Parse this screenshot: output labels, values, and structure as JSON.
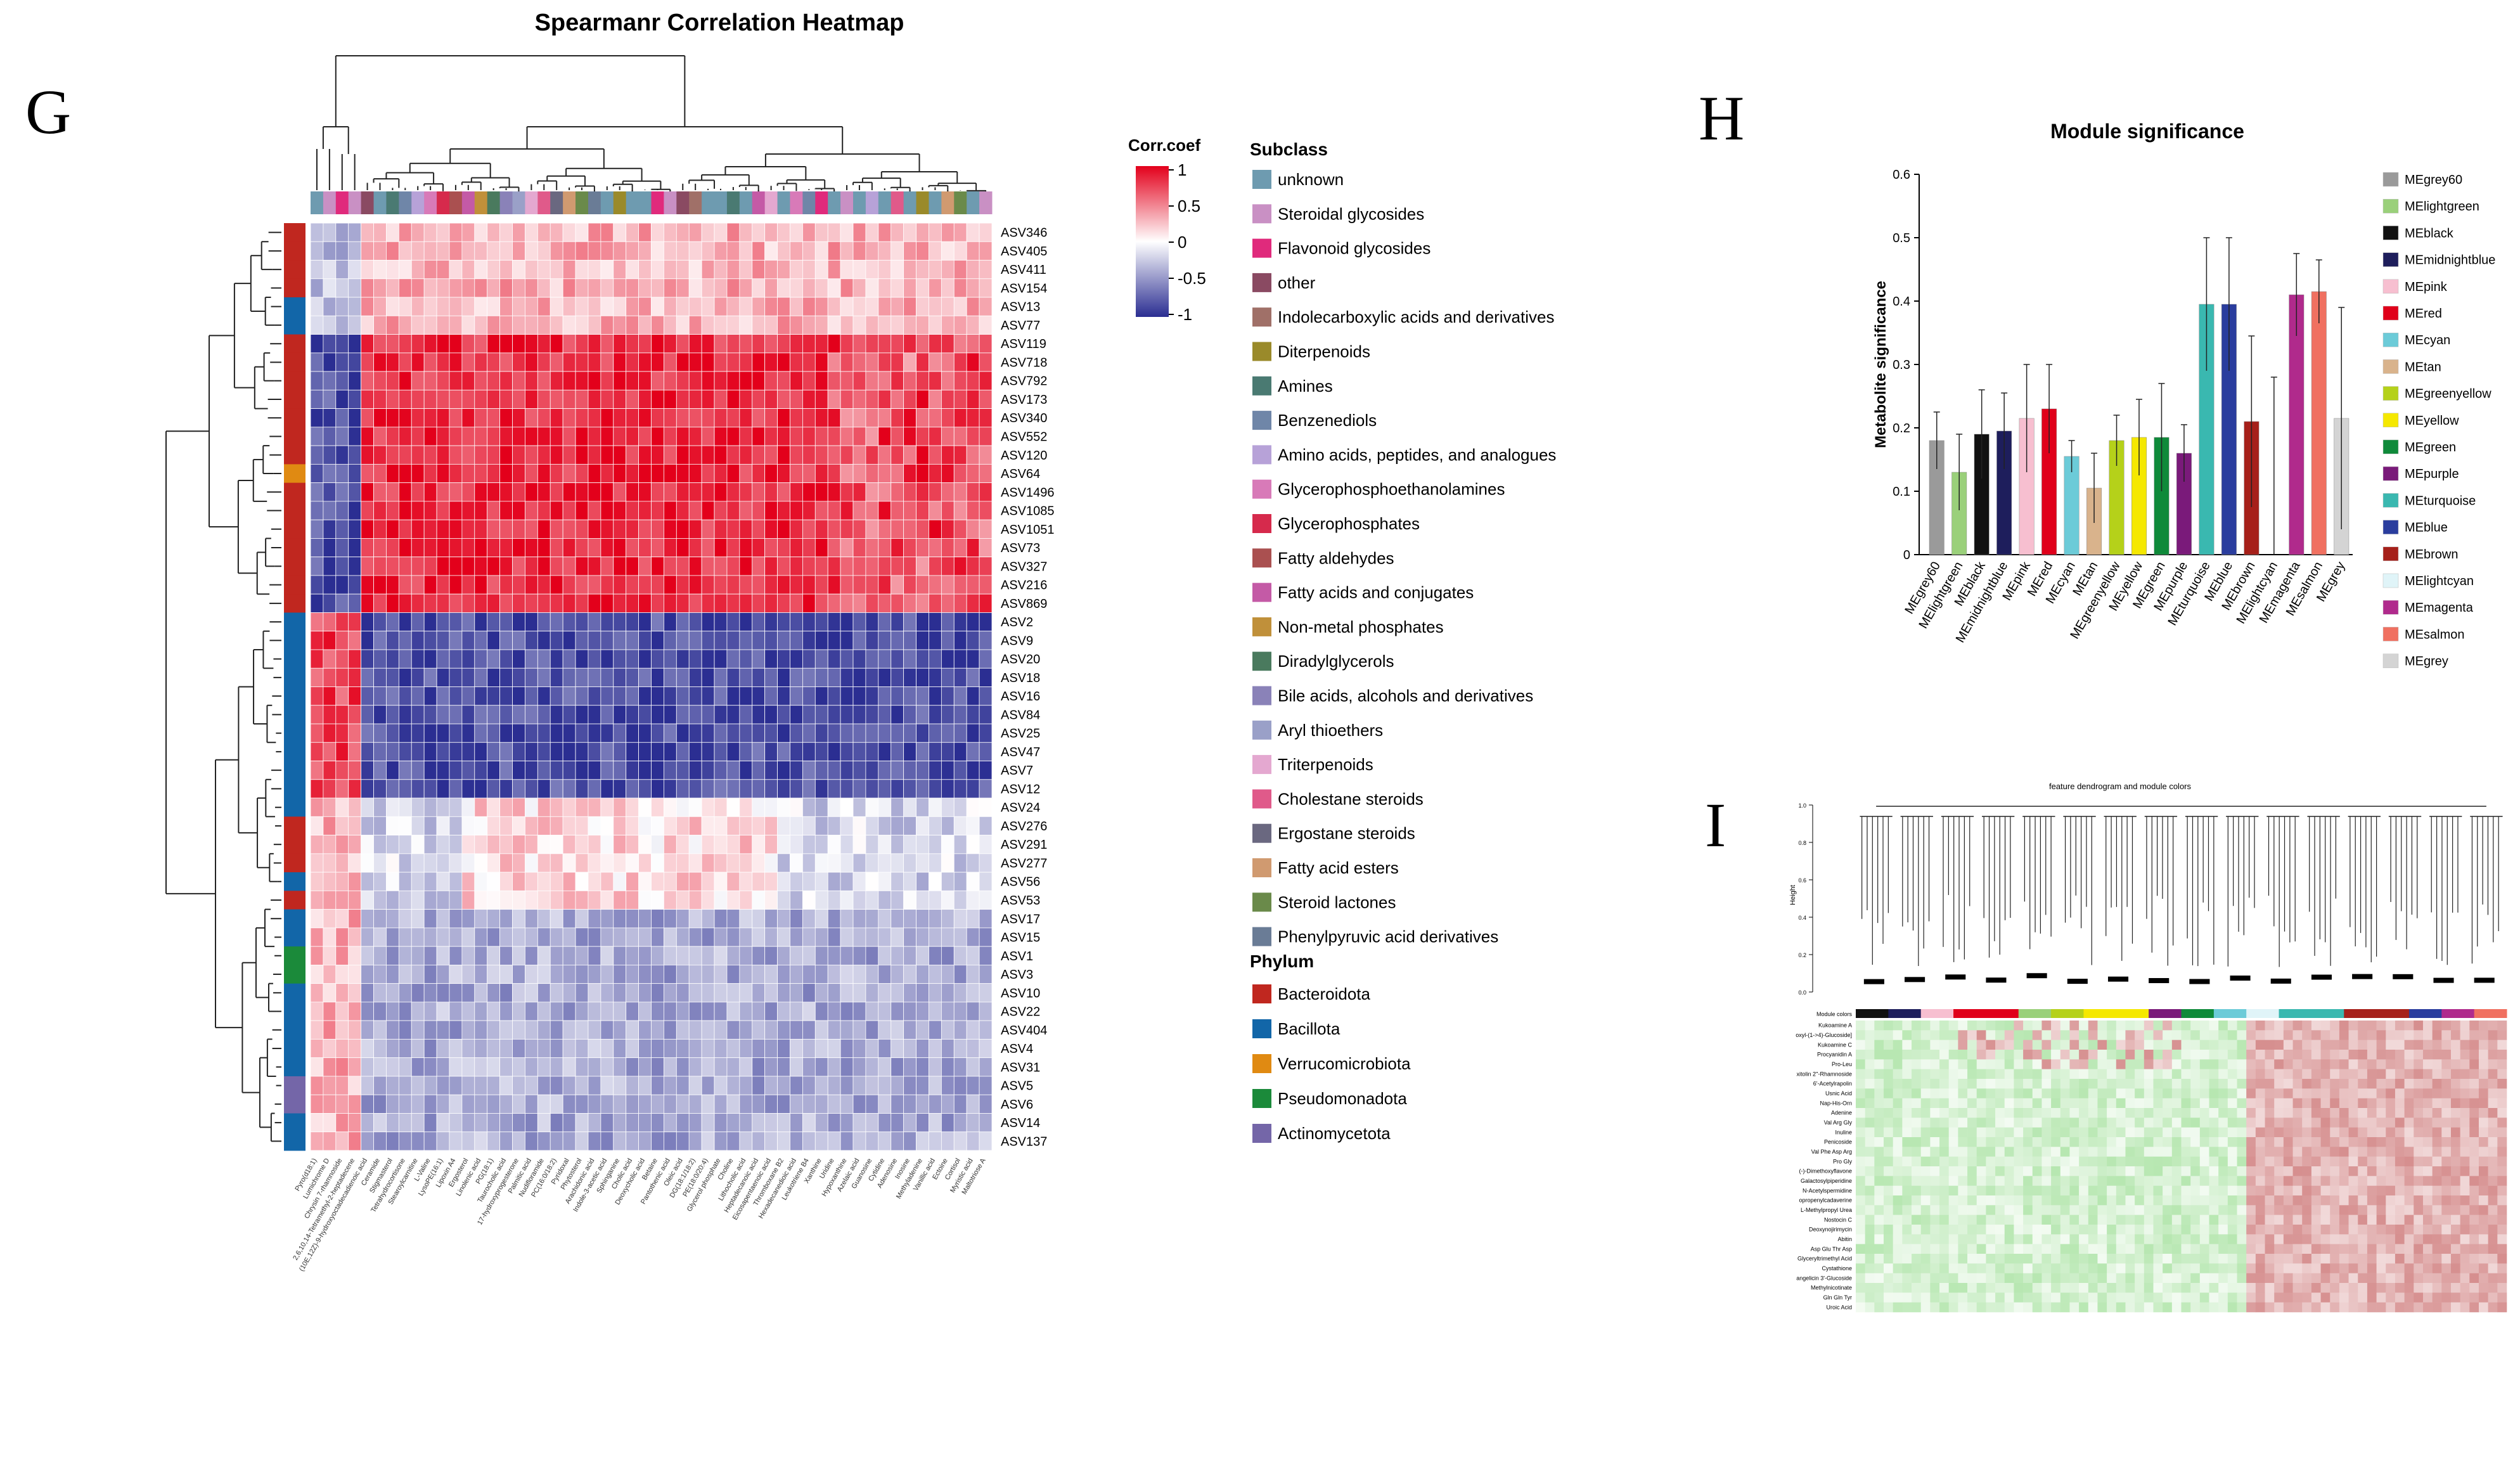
{
  "panel_labels": {
    "g": "G",
    "h": "H",
    "i": "I"
  },
  "heatmap": {
    "title": "Spearmanr Correlation Heatmap",
    "corr_legend": {
      "title": "Corr.coef",
      "ticks": [
        "1",
        "0.5",
        "0",
        "-0.5",
        "-1"
      ]
    },
    "subclass_title": "Subclass",
    "subclasses": [
      {
        "label": "unknown",
        "color": "#6e9bb0"
      },
      {
        "label": "Steroidal glycosides",
        "color": "#c990c4"
      },
      {
        "label": "Flavonoid glycosides",
        "color": "#e02a7c"
      },
      {
        "label": "other",
        "color": "#8a4a62"
      },
      {
        "label": "Indolecarboxylic acids and derivatives",
        "color": "#a07068"
      },
      {
        "label": "Diterpenoids",
        "color": "#9a8a2a"
      },
      {
        "label": "Amines",
        "color": "#4a7a72"
      },
      {
        "label": "Benzenediols",
        "color": "#6f86a8"
      },
      {
        "label": "Amino acids, peptides, and analogues",
        "color": "#b7a2d8"
      },
      {
        "label": "Glycerophosphoethanolamines",
        "color": "#d87ab8"
      },
      {
        "label": "Glycerophosphates",
        "color": "#d62a4c"
      },
      {
        "label": "Fatty aldehydes",
        "color": "#aa5050"
      },
      {
        "label": "Fatty acids and conjugates",
        "color": "#c45aa6"
      },
      {
        "label": "Non-metal phosphates",
        "color": "#c0903a"
      },
      {
        "label": "Diradylglycerols",
        "color": "#4a7a5e"
      },
      {
        "label": "Bile acids, alcohols and derivatives",
        "color": "#8a82b8"
      },
      {
        "label": "Aryl thioethers",
        "color": "#9aa0c8"
      },
      {
        "label": "Triterpenoids",
        "color": "#e4a8d0"
      },
      {
        "label": "Cholestane steroids",
        "color": "#e05a8a"
      },
      {
        "label": "Ergostane steroids",
        "color": "#6a6880"
      },
      {
        "label": "Fatty acid esters",
        "color": "#d09a70"
      },
      {
        "label": "Steroid lactones",
        "color": "#6a8a4a"
      },
      {
        "label": "Phenylpyruvic acid derivatives",
        "color": "#6a7c96"
      }
    ],
    "phylum_title": "Phylum",
    "phyla": [
      {
        "label": "Bacteroidota",
        "color": "#c0271f"
      },
      {
        "label": "Bacillota",
        "color": "#1266a8"
      },
      {
        "label": "Verrucomicrobiota",
        "color": "#e08a12"
      },
      {
        "label": "Pseudomonadota",
        "color": "#1b8a3a"
      },
      {
        "label": "Actinomycetota",
        "color": "#7466a8"
      }
    ],
    "row_labels": [
      "ASV346",
      "ASV405",
      "ASV411",
      "ASV154",
      "ASV13",
      "ASV77",
      "ASV119",
      "ASV718",
      "ASV792",
      "ASV173",
      "ASV340",
      "ASV552",
      "ASV120",
      "ASV64",
      "ASV1496",
      "ASV1085",
      "ASV1051",
      "ASV73",
      "ASV327",
      "ASV216",
      "ASV869",
      "ASV2",
      "ASV9",
      "ASV20",
      "ASV18",
      "ASV16",
      "ASV84",
      "ASV25",
      "ASV47",
      "ASV7",
      "ASV12",
      "ASV24",
      "ASV276",
      "ASV291",
      "ASV277",
      "ASV56",
      "ASV53",
      "ASV17",
      "ASV15",
      "ASV1",
      "ASV3",
      "ASV10",
      "ASV22",
      "ASV404",
      "ASV4",
      "ASV31",
      "ASV5",
      "ASV6",
      "ASV14",
      "ASV137"
    ],
    "row_phylum": [
      "Bacteroidota",
      "Bacteroidota",
      "Bacteroidota",
      "Bacteroidota",
      "Bacillota",
      "Bacillota",
      "Bacteroidota",
      "Bacteroidota",
      "Bacteroidota",
      "Bacteroidota",
      "Bacteroidota",
      "Bacteroidota",
      "Bacteroidota",
      "Verrucomicrobiota",
      "Bacteroidota",
      "Bacteroidota",
      "Bacteroidota",
      "Bacteroidota",
      "Bacteroidota",
      "Bacteroidota",
      "Bacteroidota",
      "Bacillota",
      "Bacillota",
      "Bacillota",
      "Bacillota",
      "Bacillota",
      "Bacillota",
      "Bacillota",
      "Bacillota",
      "Bacillota",
      "Bacillota",
      "Bacillota",
      "Bacteroidota",
      "Bacteroidota",
      "Bacteroidota",
      "Bacillota",
      "Bacteroidota",
      "Bacillota",
      "Bacillota",
      "Pseudomonadota",
      "Pseudomonadota",
      "Bacillota",
      "Bacillota",
      "Bacillota",
      "Bacillota",
      "Bacillota",
      "Actinomycetota",
      "Actinomycetota",
      "Bacillota",
      "Bacillota"
    ],
    "col_labels": [
      "Pyro(d18:1)",
      "Lumichrome D",
      "Chrysin 7-rhamnoside",
      "2,6,10,14-Tetramethyl-2-heptadecene",
      "(10E,12Z)-9-hydroxyoctadecadienoic acid",
      "Ceramide",
      "Stigmasterol",
      "Tetrahydrocortisone",
      "Stearoylcarnitine",
      "L-Valine",
      "LysoPE(16:1)",
      "Lipoxin A4",
      "Ergosterol",
      "Linolenic acid",
      "PG(18:1)",
      "Taurocholic acid",
      "17-hydroxyprogesterone",
      "Palmitic acid",
      "Nudifloramide",
      "PC(16:0/18:2)",
      "Pyridoxal",
      "Phytosterol",
      "Arachidonic acid",
      "Indole-3-acetic acid",
      "Sphinganine",
      "Cholic acid",
      "Deoxycholic acid",
      "Betaine",
      "Pantothenic acid",
      "Oleic acid",
      "DG(18:1/18:2)",
      "PE(18:0/20:4)",
      "Glycerol phosphate",
      "Choline",
      "Lithocholic acid",
      "Heptadecanoic acid",
      "Eicosapentaenoic acid",
      "Thromboxane B2",
      "Hexadecanedioic acid",
      "Leukotriene B4",
      "Xanthine",
      "Uridine",
      "Hypoxanthine",
      "Azelaic acid",
      "Guanosine",
      "Cytidine",
      "Adenosine",
      "Inosine",
      "Methyladenine",
      "Vanillic acid",
      "Ectoine",
      "Cortisol",
      "Myristic acid",
      "Maltotriose A"
    ],
    "col_subclass_colors": [
      "#6e9bb0",
      "#c990c4",
      "#e02a7c",
      "#c990c4",
      "#8a4a62",
      "#6e9bb0",
      "#4a7a72",
      "#6f86a8",
      "#b7a2d8",
      "#d87ab8",
      "#d62a4c",
      "#aa5050",
      "#c45aa6",
      "#c0903a",
      "#4a7a5e",
      "#8a82b8",
      "#9aa0c8",
      "#e4a8d0",
      "#e05a8a",
      "#6a6880",
      "#d09a70",
      "#6a8a4a",
      "#6a7c96",
      "#6e9bb0",
      "#9a8a2a",
      "#6e9bb0",
      "#6e9bb0",
      "#e02a7c",
      "#c990c4",
      "#8a4a62",
      "#a07068",
      "#6e9bb0",
      "#6e9bb0",
      "#4a7a72",
      "#6e9bb0",
      "#c45aa6",
      "#e4a8d0",
      "#6e9bb0",
      "#d87ab8",
      "#6f86a8",
      "#e02a7c",
      "#6e9bb0",
      "#c990c4",
      "#6e9bb0",
      "#b7a2d8",
      "#6e9bb0",
      "#e05a8a",
      "#6e9bb0",
      "#9a8a2a",
      "#6e9bb0",
      "#d09a70",
      "#6a8a4a",
      "#6e9bb0",
      "#c990c4"
    ]
  },
  "chart_data": [
    {
      "type": "heatmap",
      "title": "Spearmanr Correlation Heatmap",
      "legend_title": "Corr.coef",
      "value_range": [
        -1,
        1
      ],
      "row_groups": [
        {
          "rows": "ASV346-ASV77",
          "left_block": -0.3,
          "right_block": 0.3
        },
        {
          "rows": "ASV119-ASV869",
          "left_block": -0.85,
          "right_block": 0.85
        },
        {
          "rows": "ASV2-ASV12",
          "left_block": 0.75,
          "right_block": -0.85
        },
        {
          "rows": "ASV24-ASV53",
          "left_block": 0.3,
          "right_block": 0.15
        },
        {
          "rows": "ASV17-ASV137",
          "left_block": 0.3,
          "right_block": -0.4
        }
      ]
    },
    {
      "type": "bar",
      "title": "Module significance",
      "ylabel": "Metabolite significance",
      "ylim": [
        0,
        0.6
      ],
      "yticks": [
        "0",
        "0.1",
        "0.2",
        "0.3",
        "0.4",
        "0.5",
        "0.6"
      ],
      "categories": [
        "MEgrey60",
        "MElightgreen",
        "MEblack",
        "MEmidnightblue",
        "MEpink",
        "MEred",
        "MEcyan",
        "MEtan",
        "MEgreenyellow",
        "MEyellow",
        "MEgreen",
        "MEpurple",
        "MEturquoise",
        "MEblue",
        "MEbrown",
        "MElightcyan",
        "MEmagenta",
        "MEsalmon",
        "MEgrey"
      ],
      "values": [
        0.18,
        0.13,
        0.19,
        0.195,
        0.215,
        0.23,
        0.155,
        0.105,
        0.18,
        0.185,
        0.185,
        0.16,
        0.395,
        0.395,
        0.21,
        0.0,
        0.41,
        0.415,
        0.215
      ],
      "errors": [
        0.045,
        0.06,
        0.07,
        0.06,
        0.085,
        0.07,
        0.025,
        0.055,
        0.04,
        0.06,
        0.085,
        0.045,
        0.105,
        0.105,
        0.135,
        0.28,
        0.065,
        0.05,
        0.175
      ],
      "colors": [
        "#9a9a9a",
        "#9ad07a",
        "#111111",
        "#1e1e5c",
        "#f7bfd0",
        "#e0001a",
        "#6ccbd8",
        "#d9b38c",
        "#b5d11a",
        "#f5e800",
        "#0f8a3a",
        "#7a1a7a",
        "#3ab8b0",
        "#2a3d9e",
        "#a6201a",
        "#e0f4f8",
        "#b02a8c",
        "#f07060",
        "#d4d4d4"
      ]
    },
    {
      "type": "heatmap",
      "title": "feature dendrogram and module colors",
      "ylabel": "Height",
      "yticks": [
        "0.0",
        "0.2",
        "0.4",
        "0.6",
        "0.8",
        "1.0"
      ],
      "row_labels": [
        "Module colors",
        "Kukoamine A",
        "oxyl-(1->4)-Glucoside]",
        "Kukoamine C",
        "Procyanidin A",
        "Pro-Leu",
        "xitolin 2''-Rhamnoside",
        "6'-Acetylrapolin",
        "Usnic Acid",
        "Nap-His-Orn",
        "Adenine",
        "Val Arg Gly",
        "Inuline",
        "Penicoside",
        "Val Phe Asp Arg",
        "Pro Gly",
        "(-)-Dimethoxyflavone",
        "Galactosylpiperidine",
        "N-Acetylspermidine",
        "opropenylcadaverine",
        "L-Methylpropyl Urea",
        "Nostocin C",
        "Deoxynojirimycin",
        "Abitin",
        "Asp Glu Thr Asp",
        "Glyceryltrimethyl Acid",
        "Cystathione",
        "angelicin 3'-Glucoside",
        "Methylnicotinate",
        "Gln Gln Tyr",
        "Uroic Acid"
      ]
    }
  ],
  "module_significance": {
    "title": "Module significance",
    "ylabel": "Metabolite significance"
  },
  "dendrogram": {
    "title": "feature dendrogram and module colors",
    "ylabel": "Height",
    "module_label": "Module colors"
  }
}
